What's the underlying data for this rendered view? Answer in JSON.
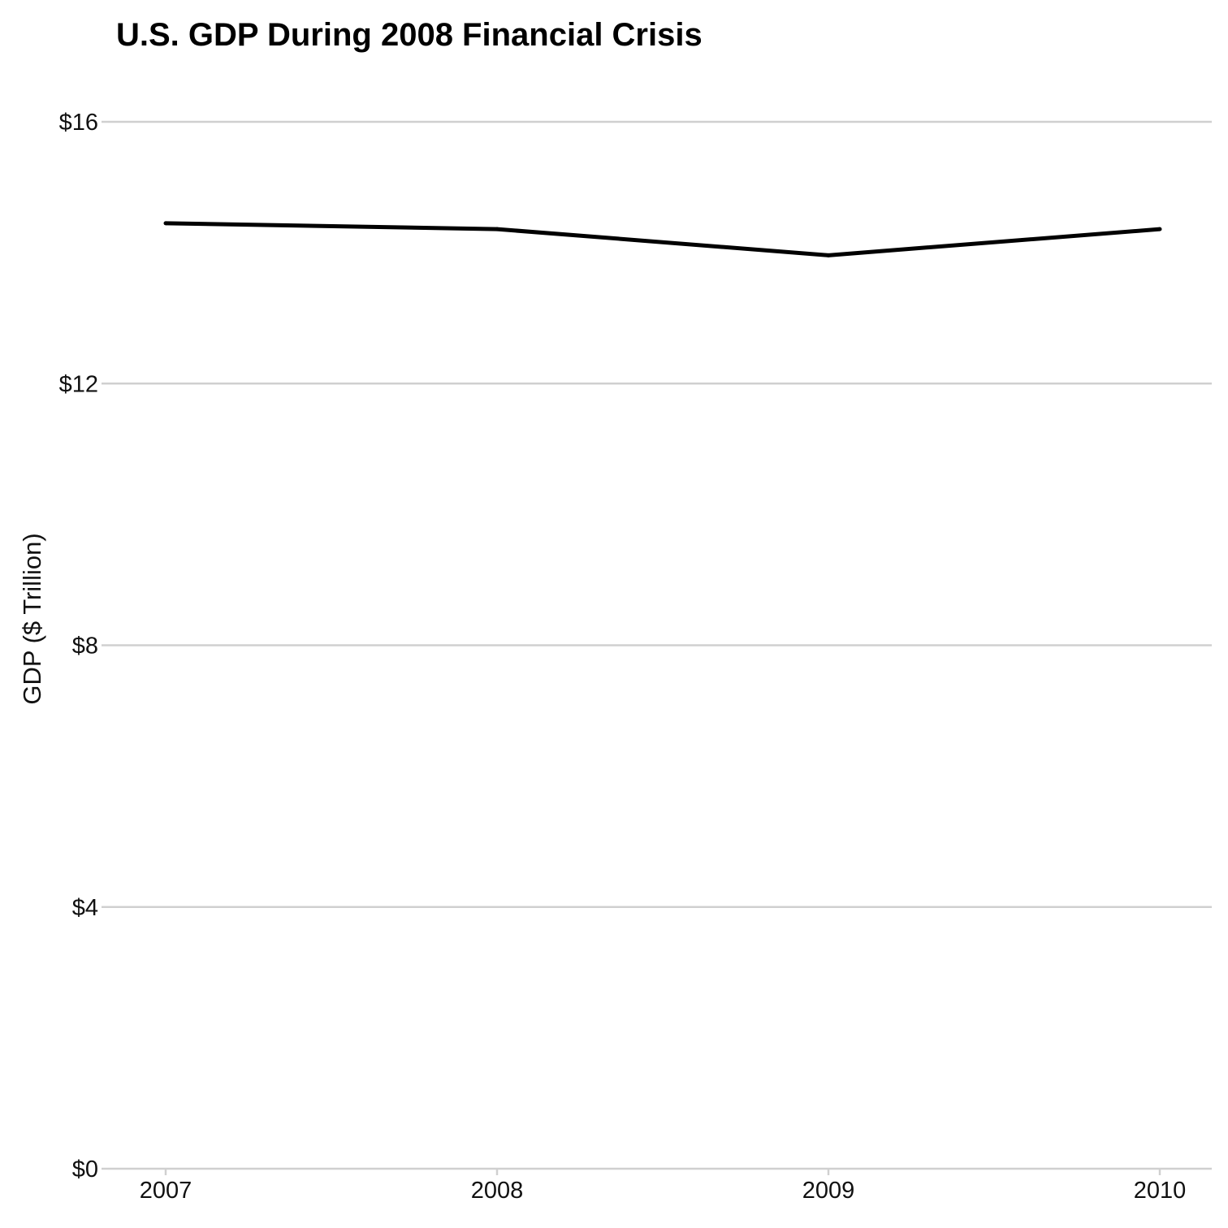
{
  "chart_data": {
    "type": "line",
    "title": "U.S. GDP During 2008 Financial Crisis",
    "xlabel": "",
    "ylabel": "GDP ($ Trillion)",
    "x": [
      "2007",
      "2008",
      "2009",
      "2010"
    ],
    "series": [
      {
        "values": [
          14.45,
          14.36,
          13.96,
          14.36
        ]
      }
    ],
    "ylim": [
      0,
      16
    ],
    "y_ticks": [
      0,
      4,
      8,
      12,
      16
    ],
    "y_tick_labels": [
      "$0",
      "$4",
      "$8",
      "$12",
      "$16"
    ],
    "grid": "horizontal",
    "legend": "none",
    "colors": {
      "line": "#000000",
      "grid": "#d0d0d0",
      "text": "#111111"
    }
  }
}
